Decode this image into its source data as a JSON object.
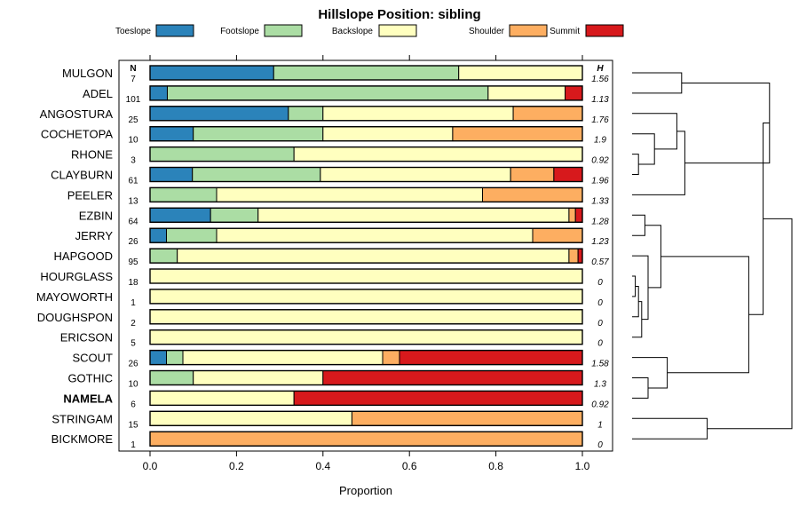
{
  "chart_data": {
    "type": "stacked-bar",
    "title": "Hillslope Position: sibling",
    "xlabel": "Proportion",
    "xlim": [
      0,
      1
    ],
    "x_ticks": [
      "0.0",
      "0.2",
      "0.4",
      "0.6",
      "0.8",
      "1.0"
    ],
    "n_header": "N",
    "h_header": "H",
    "series": [
      {
        "name": "Toeslope",
        "color": "#2b83ba"
      },
      {
        "name": "Footslope",
        "color": "#abdda4"
      },
      {
        "name": "Backslope",
        "color": "#ffffbf"
      },
      {
        "name": "Shoulder",
        "color": "#fdae61"
      },
      {
        "name": "Summit",
        "color": "#d7191c"
      }
    ],
    "categories": [
      {
        "name": "MULGON",
        "n": "7",
        "h": "1.56",
        "bold": false,
        "values": [
          0.286,
          0.428,
          0.286,
          0,
          0
        ]
      },
      {
        "name": "ADEL",
        "n": "101",
        "h": "1.13",
        "bold": false,
        "values": [
          0.04,
          0.742,
          0.178,
          0,
          0.04
        ]
      },
      {
        "name": "ANGOSTURA",
        "n": "25",
        "h": "1.76",
        "bold": false,
        "values": [
          0.32,
          0.08,
          0.44,
          0.16,
          0
        ]
      },
      {
        "name": "COCHETOPA",
        "n": "10",
        "h": "1.9",
        "bold": false,
        "values": [
          0.1,
          0.3,
          0.3,
          0.3,
          0
        ]
      },
      {
        "name": "RHONE",
        "n": "3",
        "h": "0.92",
        "bold": false,
        "values": [
          0,
          0.333,
          0.667,
          0,
          0
        ]
      },
      {
        "name": "CLAYBURN",
        "n": "61",
        "h": "1.96",
        "bold": false,
        "values": [
          0.098,
          0.296,
          0.44,
          0.1,
          0.066
        ]
      },
      {
        "name": "PEELER",
        "n": "13",
        "h": "1.33",
        "bold": false,
        "values": [
          0,
          0.154,
          0.615,
          0.231,
          0
        ]
      },
      {
        "name": "EZBIN",
        "n": "64",
        "h": "1.28",
        "bold": false,
        "values": [
          0.14,
          0.11,
          0.719,
          0.015,
          0.016
        ]
      },
      {
        "name": "JERRY",
        "n": "26",
        "h": "1.23",
        "bold": false,
        "values": [
          0.038,
          0.116,
          0.731,
          0.115,
          0
        ]
      },
      {
        "name": "HAPGOOD",
        "n": "95",
        "h": "0.57",
        "bold": false,
        "values": [
          0,
          0.063,
          0.906,
          0.021,
          0.01
        ]
      },
      {
        "name": "HOURGLASS",
        "n": "18",
        "h": "0",
        "bold": false,
        "values": [
          0,
          0,
          1,
          0,
          0
        ]
      },
      {
        "name": "MAYOWORTH",
        "n": "1",
        "h": "0",
        "bold": false,
        "values": [
          0,
          0,
          1,
          0,
          0
        ]
      },
      {
        "name": "DOUGHSPON",
        "n": "2",
        "h": "0",
        "bold": false,
        "values": [
          0,
          0,
          1,
          0,
          0
        ]
      },
      {
        "name": "ERICSON",
        "n": "5",
        "h": "0",
        "bold": false,
        "values": [
          0,
          0,
          1,
          0,
          0
        ]
      },
      {
        "name": "SCOUT",
        "n": "26",
        "h": "1.58",
        "bold": false,
        "values": [
          0.038,
          0.038,
          0.462,
          0.039,
          0.423
        ]
      },
      {
        "name": "GOTHIC",
        "n": "10",
        "h": "1.3",
        "bold": false,
        "values": [
          0,
          0.1,
          0.3,
          0,
          0.6
        ]
      },
      {
        "name": "NAMELA",
        "n": "6",
        "h": "0.92",
        "bold": true,
        "values": [
          0,
          0,
          0.333,
          0,
          0.667
        ]
      },
      {
        "name": "STRINGAM",
        "n": "15",
        "h": "1",
        "bold": false,
        "values": [
          0,
          0,
          0.467,
          0.533,
          0
        ]
      },
      {
        "name": "BICKMORE",
        "n": "1",
        "h": "0",
        "bold": false,
        "values": [
          0,
          0,
          0,
          1,
          0
        ]
      }
    ],
    "dendrogram": {
      "leaf_order": [
        "MULGON",
        "ADEL",
        "ANGOSTURA",
        "COCHETOPA",
        "RHONE",
        "CLAYBURN",
        "PEELER",
        "EZBIN",
        "JERRY",
        "HAPGOOD",
        "HOURGLASS",
        "MAYOWORTH",
        "DOUGHSPON",
        "ERICSON",
        "SCOUT",
        "GOTHIC",
        "NAMELA",
        "STRINGAM",
        "BICKMORE"
      ],
      "merges": [
        {
          "a": 10,
          "b": 11,
          "height": 0.02
        },
        {
          "a": 19,
          "b": 12,
          "height": 0.04
        },
        {
          "a": 20,
          "b": 13,
          "height": 0.06
        },
        {
          "a": 9,
          "b": 21,
          "height": 0.1
        },
        {
          "a": 7,
          "b": 8,
          "height": 0.08
        },
        {
          "a": 23,
          "b": 22,
          "height": 0.18
        },
        {
          "a": 15,
          "b": 16,
          "height": 0.1
        },
        {
          "a": 14,
          "b": 25,
          "height": 0.22
        },
        {
          "a": 24,
          "b": 26,
          "height": 0.73
        },
        {
          "a": 4,
          "b": 5,
          "height": 0.04
        },
        {
          "a": 28,
          "b": 3,
          "height": 0.14
        },
        {
          "a": 2,
          "b": 29,
          "height": 0.28
        },
        {
          "a": 30,
          "b": 6,
          "height": 0.33
        },
        {
          "a": 0,
          "b": 1,
          "height": 0.31
        },
        {
          "a": 32,
          "b": 31,
          "height": 0.86
        },
        {
          "a": 33,
          "b": 27,
          "height": 0.82
        },
        {
          "a": 17,
          "b": 18,
          "height": 0.47
        },
        {
          "a": 34,
          "b": 35,
          "height": 1.0
        }
      ]
    }
  }
}
